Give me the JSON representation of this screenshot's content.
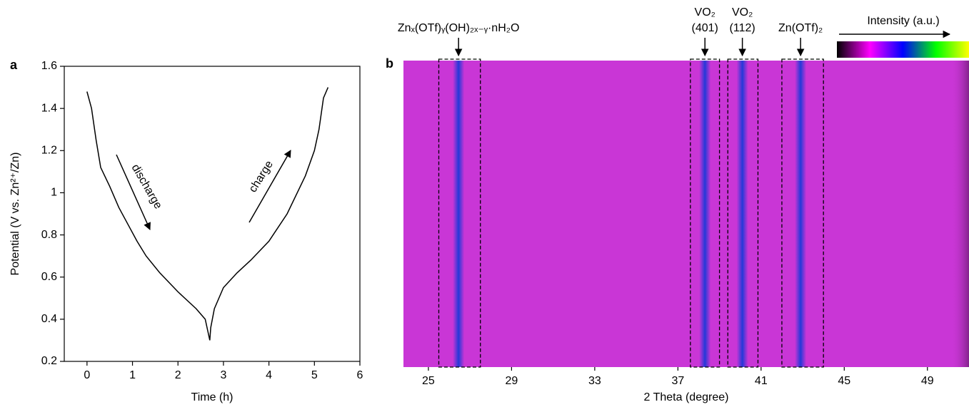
{
  "chart_data": [
    {
      "type": "line",
      "panel": "a",
      "xlabel": "Time (h)",
      "ylabel": "Potential (V vs. Zn²⁺/Zn)",
      "xlim": [
        -0.5,
        6
      ],
      "xticks": [
        0,
        1,
        2,
        3,
        4,
        5,
        6
      ],
      "ylim": [
        0.2,
        1.6
      ],
      "yticks": [
        0.2,
        0.4,
        0.6,
        0.8,
        1,
        1.2,
        1.4,
        1.6
      ],
      "color": "#000000",
      "x": [
        0,
        0.1,
        0.2,
        0.3,
        0.5,
        0.7,
        0.9,
        1.1,
        1.3,
        1.6,
        2.0,
        2.4,
        2.6,
        2.7,
        2.72,
        2.8,
        3.0,
        3.3,
        3.6,
        4.0,
        4.4,
        4.8,
        5.0,
        5.1,
        5.2,
        5.3
      ],
      "values": [
        1.48,
        1.4,
        1.25,
        1.12,
        1.03,
        0.93,
        0.85,
        0.77,
        0.7,
        0.62,
        0.53,
        0.45,
        0.4,
        0.3,
        0.36,
        0.45,
        0.55,
        0.62,
        0.68,
        0.77,
        0.9,
        1.08,
        1.2,
        1.3,
        1.45,
        1.5
      ],
      "annotations": [
        "discharge",
        "charge"
      ]
    },
    {
      "type": "heatmap",
      "panel": "b",
      "xlabel": "2 Theta (degree)",
      "xlim": [
        23.8,
        51
      ],
      "xticks": [
        25,
        29,
        33,
        37,
        41,
        45,
        49
      ],
      "background": "#c936d6",
      "peak_color": "#2438d8",
      "colorbar": {
        "label": "Intensity (a.u.)",
        "colors": [
          "#000000",
          "#ff00ff",
          "#0000ff",
          "#00ff00",
          "#ffff00"
        ]
      },
      "peaks": [
        {
          "label": [
            "Znₓ(OTf)ᵧ(OH)₂ₓ₋ᵧ·nH₂O"
          ],
          "position": 26.45,
          "range": [
            25.5,
            27.5
          ]
        },
        {
          "label": [
            "VO₂",
            "(401)"
          ],
          "position": 38.3,
          "range": [
            37.6,
            39.0
          ]
        },
        {
          "label": [
            "VO₂",
            "(112)"
          ],
          "position": 40.1,
          "range": [
            39.4,
            40.85
          ]
        },
        {
          "label": [
            "Zn(OTf)₂"
          ],
          "position": 42.9,
          "range": [
            42.0,
            44.0
          ]
        }
      ]
    }
  ]
}
